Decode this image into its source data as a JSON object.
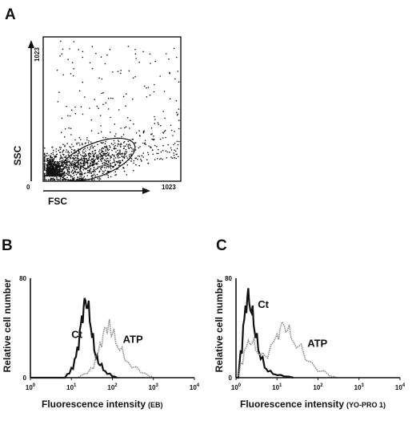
{
  "panels": {
    "A": {
      "letter": "A"
    },
    "B": {
      "letter": "B"
    },
    "C": {
      "letter": "C"
    }
  },
  "chart_data": [
    {
      "panel": "A",
      "type": "scatter",
      "xlabel": "FSC",
      "ylabel": "SSC",
      "xlim": [
        0,
        1023
      ],
      "ylim": [
        0,
        1023
      ],
      "x_ticks": [
        "0",
        "1023"
      ],
      "y_ticks": [
        "1023"
      ],
      "gate": {
        "center": [
          400,
          150
        ],
        "semi_axes": [
          300,
          120
        ],
        "rotation_deg": -20
      },
      "point_count": 1800
    },
    {
      "panel": "B",
      "type": "line",
      "xscale": "log",
      "xlim": [
        1,
        10000
      ],
      "ylim": [
        0,
        80
      ],
      "xlabel": "Fluorescence intensity",
      "xlabel_suffix": "(EB)",
      "ylabel": "Relative cell number",
      "y_ticks": [
        "0",
        "80"
      ],
      "x_ticks": [
        {
          "value": 1,
          "base": "10",
          "exp": "0"
        },
        {
          "value": 10,
          "base": "10",
          "exp": "1"
        },
        {
          "value": 100,
          "base": "10",
          "exp": "2"
        },
        {
          "value": 1000,
          "base": "10",
          "exp": "3"
        },
        {
          "value": 10000,
          "base": "10",
          "exp": "4"
        }
      ],
      "series": [
        {
          "name": "Ct",
          "color": "#111111",
          "width": 2.2,
          "x": [
            1,
            6,
            8,
            10,
            12,
            14,
            16,
            18,
            20,
            22,
            25,
            28,
            32,
            36,
            40,
            45,
            50,
            60,
            75,
            100,
            130
          ],
          "y": [
            0,
            0,
            3,
            8,
            15,
            25,
            38,
            50,
            58,
            62,
            56,
            45,
            32,
            22,
            16,
            12,
            10,
            6,
            3,
            1,
            0
          ]
        },
        {
          "name": "ATP",
          "color": "#8a8a8a",
          "width": 1.6,
          "x": [
            1,
            10,
            20,
            30,
            40,
            50,
            60,
            70,
            80,
            90,
            100,
            120,
            150,
            200,
            300,
            500,
            800,
            1000
          ],
          "y": [
            0,
            0,
            3,
            8,
            18,
            28,
            36,
            40,
            42,
            38,
            35,
            28,
            22,
            14,
            8,
            4,
            1,
            0
          ]
        }
      ],
      "annotations": [
        {
          "text": "Ct",
          "x": 10,
          "y": 32
        },
        {
          "text": "ATP",
          "x": 180,
          "y": 28
        }
      ]
    },
    {
      "panel": "C",
      "type": "line",
      "xscale": "log",
      "xlim": [
        1,
        10000
      ],
      "ylim": [
        0,
        80
      ],
      "xlabel": "Fluorescence intensity",
      "xlabel_suffix": "(YO-PRO 1)",
      "ylabel": "Relative cell number",
      "y_ticks": [
        "0",
        "80"
      ],
      "x_ticks": [
        {
          "value": 1,
          "base": "10",
          "exp": "0"
        },
        {
          "value": 10,
          "base": "10",
          "exp": "1"
        },
        {
          "value": 100,
          "base": "10",
          "exp": "2"
        },
        {
          "value": 1000,
          "base": "10",
          "exp": "3"
        },
        {
          "value": 10000,
          "base": "10",
          "exp": "4"
        }
      ],
      "series": [
        {
          "name": "Ct",
          "color": "#111111",
          "width": 2.2,
          "x": [
            1,
            1.3,
            1.5,
            1.7,
            1.9,
            2.1,
            2.4,
            2.7,
            3,
            3.5,
            4,
            5,
            6,
            8,
            10,
            15,
            25
          ],
          "y": [
            0,
            22,
            42,
            58,
            66,
            60,
            52,
            42,
            32,
            22,
            15,
            8,
            5,
            3,
            2,
            1,
            0
          ]
        },
        {
          "name": "ATP",
          "color": "#8a8a8a",
          "width": 1.6,
          "x": [
            1,
            1.3,
            1.6,
            2,
            2.5,
            3,
            4,
            5,
            7,
            10,
            12,
            15,
            18,
            22,
            30,
            50,
            100,
            200,
            300
          ],
          "y": [
            0,
            12,
            22,
            30,
            28,
            22,
            18,
            18,
            26,
            35,
            40,
            42,
            38,
            32,
            24,
            14,
            5,
            1,
            0
          ]
        }
      ],
      "annotations": [
        {
          "text": "Ct",
          "x": 3.4,
          "y": 56
        },
        {
          "text": "ATP",
          "x": 55,
          "y": 25
        }
      ]
    }
  ]
}
